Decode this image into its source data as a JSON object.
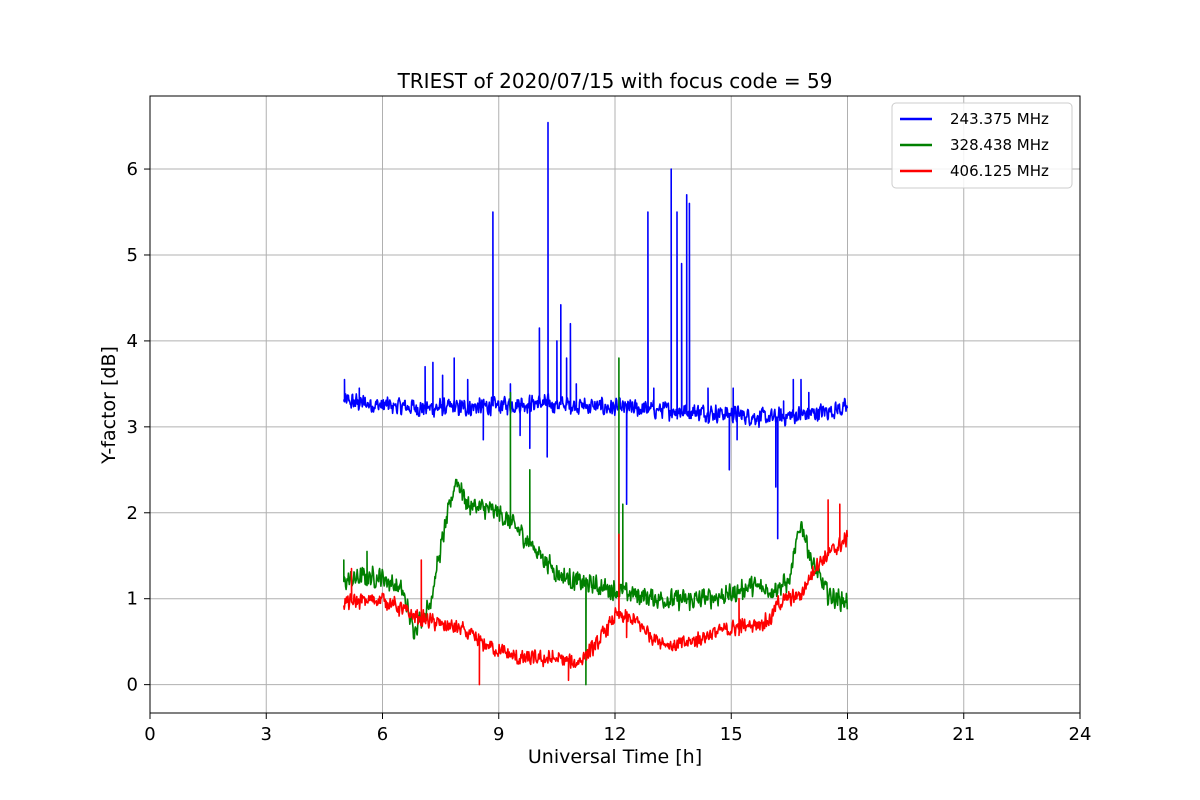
{
  "chart_data": {
    "type": "line",
    "title": "TRIEST of 2020/07/15 with focus code = 59",
    "xlabel": "Universal Time [h]",
    "ylabel": "Y-factor [dB]",
    "xlim": [
      0,
      24
    ],
    "ylim": [
      -0.33,
      6.85
    ],
    "xticks": [
      0,
      3,
      6,
      9,
      12,
      15,
      18,
      21,
      24
    ],
    "yticks": [
      0,
      1,
      2,
      3,
      4,
      5,
      6
    ],
    "grid": true,
    "legend_position": "top-right",
    "series": [
      {
        "name": "243.375 MHz",
        "color": "#0000ff",
        "baseline": [
          [
            5.0,
            3.3
          ],
          [
            6.0,
            3.25
          ],
          [
            7.0,
            3.22
          ],
          [
            8.0,
            3.22
          ],
          [
            9.0,
            3.25
          ],
          [
            10.0,
            3.28
          ],
          [
            11.0,
            3.25
          ],
          [
            12.0,
            3.22
          ],
          [
            13.0,
            3.2
          ],
          [
            14.0,
            3.18
          ],
          [
            15.0,
            3.15
          ],
          [
            16.0,
            3.1
          ],
          [
            17.0,
            3.15
          ],
          [
            18.0,
            3.22
          ]
        ],
        "noise": 0.09,
        "spikes": [
          [
            5.02,
            3.55
          ],
          [
            5.4,
            3.45
          ],
          [
            7.1,
            3.7
          ],
          [
            7.3,
            3.75
          ],
          [
            7.55,
            3.6
          ],
          [
            7.85,
            3.8
          ],
          [
            8.2,
            3.55
          ],
          [
            8.6,
            2.85
          ],
          [
            8.85,
            5.5
          ],
          [
            9.3,
            3.5
          ],
          [
            9.55,
            2.9
          ],
          [
            9.8,
            2.75
          ],
          [
            10.05,
            4.15
          ],
          [
            10.25,
            2.65
          ],
          [
            10.27,
            6.54
          ],
          [
            10.5,
            4.0
          ],
          [
            10.6,
            4.42
          ],
          [
            10.75,
            3.8
          ],
          [
            10.85,
            4.2
          ],
          [
            11.0,
            3.5
          ],
          [
            12.3,
            2.1
          ],
          [
            12.85,
            5.5
          ],
          [
            13.0,
            3.45
          ],
          [
            13.45,
            6.0
          ],
          [
            13.6,
            5.5
          ],
          [
            13.72,
            4.9
          ],
          [
            13.85,
            5.7
          ],
          [
            13.92,
            5.6
          ],
          [
            14.4,
            3.45
          ],
          [
            14.95,
            2.5
          ],
          [
            15.05,
            3.45
          ],
          [
            15.15,
            2.85
          ],
          [
            16.15,
            2.3
          ],
          [
            16.2,
            1.7
          ],
          [
            16.35,
            3.3
          ],
          [
            16.6,
            3.55
          ],
          [
            16.8,
            3.55
          ],
          [
            17.0,
            3.4
          ]
        ],
        "values_note": ""
      },
      {
        "name": "328.438 MHz",
        "color": "#008000",
        "baseline": [
          [
            5.0,
            1.2
          ],
          [
            5.5,
            1.25
          ],
          [
            6.0,
            1.25
          ],
          [
            6.5,
            1.1
          ],
          [
            6.8,
            0.65
          ],
          [
            7.2,
            0.9
          ],
          [
            7.6,
            1.8
          ],
          [
            7.9,
            2.4
          ],
          [
            8.2,
            2.1
          ],
          [
            9.0,
            2.0
          ],
          [
            9.5,
            1.8
          ],
          [
            10.0,
            1.55
          ],
          [
            10.5,
            1.3
          ],
          [
            11.0,
            1.2
          ],
          [
            12.0,
            1.1
          ],
          [
            13.0,
            1.0
          ],
          [
            14.0,
            0.98
          ],
          [
            15.0,
            1.05
          ],
          [
            15.5,
            1.15
          ],
          [
            16.0,
            1.1
          ],
          [
            16.5,
            1.2
          ],
          [
            16.8,
            1.9
          ],
          [
            17.1,
            1.4
          ],
          [
            17.5,
            1.05
          ],
          [
            18.0,
            0.95
          ]
        ],
        "noise": 0.1,
        "spikes": [
          [
            5.0,
            1.45
          ],
          [
            5.6,
            1.55
          ],
          [
            9.3,
            3.4
          ],
          [
            9.8,
            2.5
          ],
          [
            11.25,
            0.0
          ],
          [
            12.1,
            3.8
          ],
          [
            12.2,
            2.1
          ]
        ],
        "values_note": ""
      },
      {
        "name": "406.125 MHz",
        "color": "#ff0000",
        "baseline": [
          [
            5.0,
            0.95
          ],
          [
            6.0,
            1.0
          ],
          [
            6.8,
            0.8
          ],
          [
            7.5,
            0.7
          ],
          [
            8.0,
            0.65
          ],
          [
            8.5,
            0.5
          ],
          [
            9.0,
            0.4
          ],
          [
            9.5,
            0.3
          ],
          [
            10.0,
            0.3
          ],
          [
            10.5,
            0.3
          ],
          [
            11.0,
            0.25
          ],
          [
            11.5,
            0.45
          ],
          [
            12.0,
            0.8
          ],
          [
            12.5,
            0.75
          ],
          [
            13.0,
            0.55
          ],
          [
            13.5,
            0.45
          ],
          [
            14.0,
            0.5
          ],
          [
            14.5,
            0.6
          ],
          [
            15.0,
            0.65
          ],
          [
            15.5,
            0.7
          ],
          [
            16.0,
            0.75
          ],
          [
            16.2,
            0.95
          ],
          [
            16.8,
            1.05
          ],
          [
            17.2,
            1.4
          ],
          [
            17.6,
            1.55
          ],
          [
            18.0,
            1.7
          ]
        ],
        "noise": 0.08,
        "spikes": [
          [
            5.2,
            1.35
          ],
          [
            7.0,
            1.45
          ],
          [
            8.5,
            0.0
          ],
          [
            10.8,
            0.05
          ],
          [
            12.1,
            1.75
          ],
          [
            12.3,
            0.55
          ],
          [
            15.2,
            1.0
          ],
          [
            17.5,
            2.15
          ],
          [
            17.8,
            2.1
          ]
        ],
        "values_note": ""
      }
    ]
  }
}
